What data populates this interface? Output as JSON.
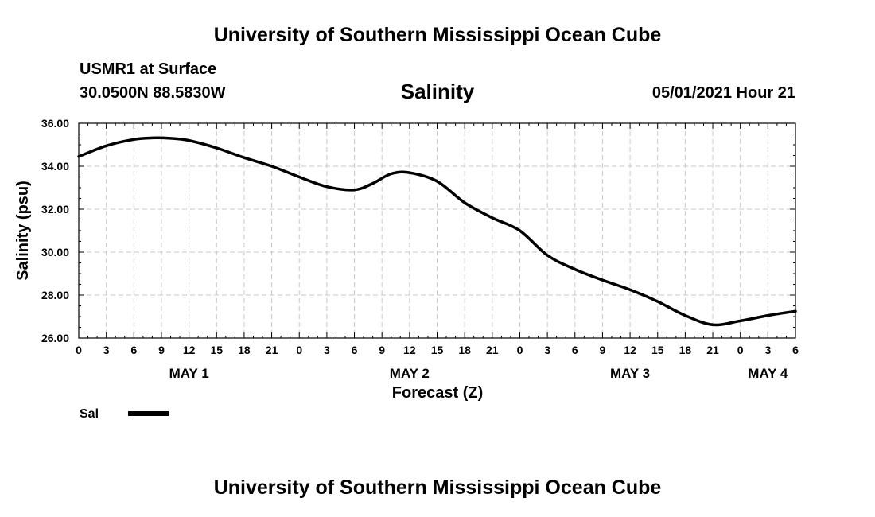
{
  "header": {
    "title_top": "University of Southern Mississippi Ocean Cube",
    "station": "USMR1 at Surface",
    "coordinates": "30.0500N  88.5830W",
    "variable_title": "Salinity",
    "datetime": "05/01/2021 Hour 21",
    "title_bottom": "University of Southern Mississippi Ocean Cube"
  },
  "chart_data": {
    "type": "line",
    "title": "Salinity",
    "xlabel": "Forecast (Z)",
    "ylabel": "Salinity (psu)",
    "xlim": [
      0,
      78
    ],
    "ylim": [
      26,
      36
    ],
    "x_tick_labels": [
      "0",
      "3",
      "6",
      "9",
      "12",
      "15",
      "18",
      "21",
      "0",
      "3",
      "6",
      "9",
      "12",
      "15",
      "18",
      "21",
      "0",
      "3",
      "6",
      "9",
      "12",
      "15",
      "18",
      "21",
      "0",
      "3",
      "6"
    ],
    "y_tick_labels": [
      "26.00",
      "28.00",
      "30.00",
      "32.00",
      "34.00",
      "36.00"
    ],
    "date_labels": [
      {
        "hour": 12,
        "label": "MAY 1"
      },
      {
        "hour": 36,
        "label": "MAY 2"
      },
      {
        "hour": 60,
        "label": "MAY 3"
      },
      {
        "hour": 75,
        "label": "MAY 4"
      }
    ],
    "grid": true,
    "line_color": "#000000",
    "series": [
      {
        "name": "Sal",
        "x": [
          0,
          3,
          6,
          8,
          10,
          12,
          15,
          18,
          21,
          24,
          27,
          30,
          32,
          34,
          36,
          39,
          42,
          45,
          48,
          51,
          54,
          57,
          60,
          63,
          66,
          69,
          72,
          75,
          78
        ],
        "values": [
          34.45,
          34.95,
          35.25,
          35.32,
          35.3,
          35.2,
          34.85,
          34.4,
          34.0,
          33.5,
          33.05,
          32.9,
          33.2,
          33.65,
          33.7,
          33.3,
          32.3,
          31.6,
          31.0,
          29.85,
          29.2,
          28.7,
          28.25,
          27.7,
          27.05,
          26.62,
          26.8,
          27.05,
          27.25
        ]
      }
    ],
    "legend": {
      "label": "Sal",
      "position": "bottom-left"
    }
  }
}
